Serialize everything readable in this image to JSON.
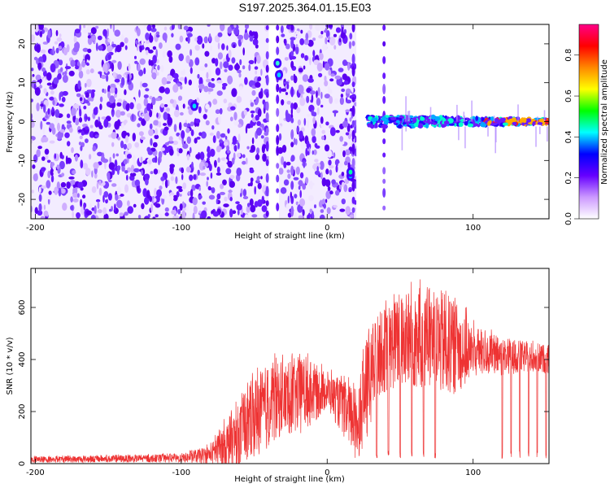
{
  "title": "S197.2025.364.01.15.E03",
  "chart_data": [
    {
      "type": "heatmap",
      "xlabel": "Height of straight line (km)",
      "ylabel": "Frequency (Hz)",
      "xlim": [
        -203,
        152
      ],
      "ylim": [
        -25,
        25
      ],
      "xticks": [
        -200,
        -100,
        0,
        100
      ],
      "yticks": [
        -20,
        -10,
        0,
        10,
        20
      ],
      "colorbar": {
        "label": "Normalized spectral amplitude",
        "range": [
          0,
          0.95
        ],
        "ticks": [
          0.0,
          0.2,
          0.4,
          0.6,
          0.8
        ],
        "tick_labels": [
          "0.0",
          "0.2",
          "0.4",
          "0.6",
          "0.8"
        ],
        "colors": [
          "#ffffff",
          "#cc99ff",
          "#6600ff",
          "#0000ff",
          "#00ffff",
          "#00ff00",
          "#ffff00",
          "#ff8800",
          "#ff0000",
          "#ff0088"
        ]
      },
      "features": {
        "noise_region_x": [
          -203,
          28
        ],
        "signal_onset_x": 28,
        "signal_frequency_hz": 0,
        "gaps_x": [
          -40,
          -33,
          20,
          38
        ]
      }
    },
    {
      "type": "line",
      "xlabel": "Height of straight line (km)",
      "ylabel": "SNR (10 * v/v)",
      "xlim": [
        -203,
        152
      ],
      "ylim": [
        0,
        750
      ],
      "xticks": [
        -200,
        -100,
        0,
        100
      ],
      "yticks": [
        0,
        200,
        400,
        600
      ],
      "series": [
        {
          "color": "#ee3333",
          "envelope_x": [
            -203,
            -150,
            -100,
            -80,
            -70,
            -60,
            -50,
            -40,
            -30,
            -20,
            -10,
            0,
            10,
            20,
            28,
            35,
            50,
            60,
            70,
            80,
            90,
            100,
            110,
            120,
            130,
            140,
            152
          ],
          "envelope_mean": [
            15,
            18,
            20,
            35,
            70,
            100,
            180,
            220,
            250,
            260,
            270,
            280,
            220,
            150,
            300,
            420,
            470,
            480,
            470,
            460,
            440,
            430,
            420,
            410,
            410,
            410,
            400
          ],
          "envelope_max": [
            30,
            35,
            40,
            80,
            180,
            260,
            370,
            430,
            420,
            450,
            420,
            370,
            350,
            330,
            560,
            620,
            690,
            730,
            700,
            720,
            650,
            560,
            520,
            500,
            490,
            480,
            470
          ]
        }
      ]
    }
  ]
}
